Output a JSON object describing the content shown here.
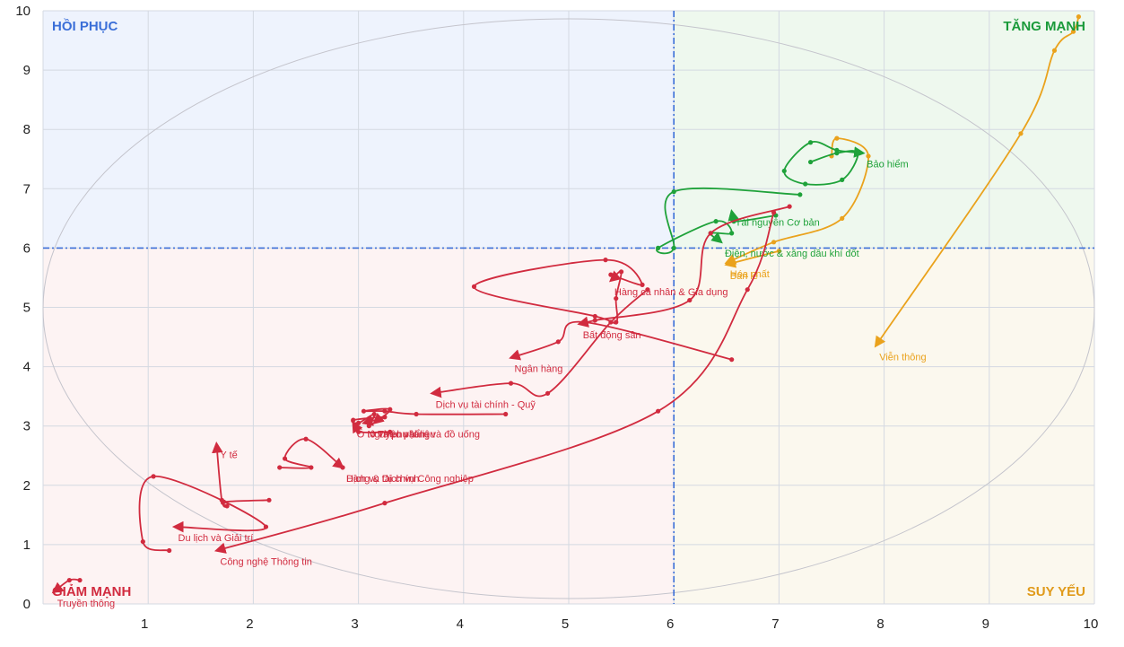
{
  "chart_data": {
    "type": "scatter",
    "xlim": [
      0,
      10
    ],
    "ylim": [
      0,
      10
    ],
    "x_ticks": [
      "1",
      "2",
      "3",
      "4",
      "5",
      "6",
      "7",
      "8",
      "9",
      "10"
    ],
    "y_ticks": [
      "0",
      "1",
      "2",
      "3",
      "4",
      "5",
      "6",
      "7",
      "8",
      "9",
      "10"
    ],
    "grid": true,
    "reference_lines": {
      "x": 6,
      "y": 6
    },
    "quadrants": [
      {
        "name": "HỒI PHỤC",
        "color": "#3b6fd8",
        "fill": "#eef3fd"
      },
      {
        "name": "TĂNG MẠNH",
        "color": "#1a9a3a",
        "fill": "#eef8ee"
      },
      {
        "name": "GIẢM MẠNH",
        "color": "#d12b3f",
        "fill": "#fdf3f3"
      },
      {
        "name": "SUY YẾU",
        "color": "#e09a1a",
        "fill": "#fbf8ee"
      }
    ],
    "colors": {
      "green": "#1fa23a",
      "orange": "#eaa21c",
      "red": "#d12b3f"
    },
    "series": [
      {
        "name": "Viễn thông",
        "color": "orange",
        "points": [
          [
            9.85,
            9.9
          ],
          [
            9.8,
            9.65
          ],
          [
            9.62,
            9.33
          ],
          [
            9.3,
            7.93
          ],
          [
            7.92,
            4.35
          ]
        ]
      },
      {
        "name": "Hóa chất",
        "color": "orange",
        "points": [
          [
            7.5,
            7.55
          ],
          [
            7.55,
            7.85
          ],
          [
            7.85,
            7.55
          ],
          [
            7.6,
            6.5
          ],
          [
            6.95,
            6.1
          ],
          [
            6.5,
            5.75
          ]
        ]
      },
      {
        "name": "Bán lẻ",
        "color": "orange",
        "points": [
          [
            7.0,
            5.95
          ],
          [
            6.5,
            5.72
          ]
        ]
      },
      {
        "name": "Bảo hiểm",
        "color": "green",
        "points": [
          [
            7.3,
            7.45
          ],
          [
            7.55,
            7.6
          ],
          [
            7.75,
            7.6
          ],
          [
            7.6,
            7.15
          ],
          [
            7.25,
            7.08
          ],
          [
            7.05,
            7.3
          ],
          [
            7.3,
            7.78
          ],
          [
            7.55,
            7.65
          ],
          [
            7.8,
            7.6
          ]
        ]
      },
      {
        "name": "Tài nguyên Cơ bản",
        "color": "green",
        "points": [
          [
            6.97,
            6.55
          ],
          [
            6.57,
            6.45
          ],
          [
            6.55,
            6.62
          ]
        ]
      },
      {
        "name": "Điện, nước & xăng dầu khí đốt",
        "color": "green",
        "points": [
          [
            7.2,
            6.9
          ],
          [
            6.0,
            6.95
          ],
          [
            6.0,
            6.0
          ],
          [
            5.85,
            6.0
          ],
          [
            6.4,
            6.45
          ],
          [
            6.55,
            6.25
          ],
          [
            6.35,
            6.25
          ],
          [
            6.45,
            6.1
          ]
        ]
      },
      {
        "name": "Hàng cá nhân & Gia dụng",
        "color": "red",
        "points": [
          [
            5.4,
            5.55
          ],
          [
            5.7,
            5.38
          ],
          [
            5.35,
            5.8
          ],
          [
            4.1,
            5.35
          ],
          [
            5.25,
            4.85
          ],
          [
            5.45,
            4.75
          ],
          [
            5.45,
            5.15
          ],
          [
            5.5,
            5.6
          ],
          [
            5.4,
            5.45
          ]
        ]
      },
      {
        "name": "Bất động sản",
        "color": "red",
        "points": [
          [
            7.1,
            6.7
          ],
          [
            6.35,
            6.25
          ],
          [
            6.15,
            5.12
          ],
          [
            5.25,
            4.78
          ],
          [
            5.1,
            4.72
          ]
        ]
      },
      {
        "name": "Ngân hàng",
        "color": "red",
        "points": [
          [
            6.55,
            4.12
          ],
          [
            5.15,
            4.75
          ],
          [
            4.9,
            4.42
          ],
          [
            4.45,
            4.15
          ]
        ]
      },
      {
        "name": "Dịch vụ tài chính - Quỹ",
        "color": "red",
        "points": [
          [
            5.75,
            5.3
          ],
          [
            5.4,
            4.75
          ],
          [
            4.8,
            3.55
          ],
          [
            4.45,
            3.72
          ],
          [
            3.7,
            3.55
          ]
        ]
      },
      {
        "name": "Thực phẩm và đồ uống",
        "color": "red",
        "points": [
          [
            4.4,
            3.2
          ],
          [
            3.55,
            3.2
          ],
          [
            3.25,
            3.25
          ],
          [
            3.05,
            3.25
          ],
          [
            3.3,
            3.28
          ],
          [
            3.15,
            3.05
          ]
        ]
      },
      {
        "name": "Nguyên vật liệu",
        "color": "red",
        "points": [
          [
            3.1,
            3.0
          ],
          [
            3.15,
            3.2
          ],
          [
            3.0,
            3.05
          ],
          [
            2.95,
            3.1
          ],
          [
            3.25,
            3.15
          ],
          [
            3.05,
            3.05
          ]
        ]
      },
      {
        "name": "Ô tô và phụ tùng",
        "color": "red",
        "points": [
          [
            3.3,
            2.9
          ],
          [
            3.0,
            2.9
          ],
          [
            2.95,
            3.05
          ]
        ]
      },
      {
        "name": "Hàng & Dịch vụ Công nghiệp",
        "color": "red",
        "points": [
          [
            2.25,
            2.3
          ],
          [
            2.55,
            2.3
          ],
          [
            2.3,
            2.45
          ],
          [
            2.5,
            2.78
          ],
          [
            2.85,
            2.3
          ]
        ]
      },
      {
        "name": "Dịch vụ tài chính",
        "color": "red",
        "points": [
          [
            2.85,
            2.3
          ]
        ]
      },
      {
        "name": "Y tế",
        "color": "red",
        "points": [
          [
            2.15,
            1.75
          ],
          [
            1.72,
            1.72
          ],
          [
            1.75,
            1.65
          ],
          [
            1.7,
            1.75
          ],
          [
            1.65,
            2.7
          ]
        ]
      },
      {
        "name": "Du lịch và Giải trí",
        "color": "red",
        "points": [
          [
            1.2,
            0.9
          ],
          [
            0.95,
            1.05
          ],
          [
            1.05,
            2.15
          ],
          [
            2.12,
            1.3
          ],
          [
            1.25,
            1.3
          ]
        ]
      },
      {
        "name": "Công nghệ Thông tin",
        "color": "red",
        "points": [
          [
            6.95,
            6.6
          ],
          [
            6.7,
            5.3
          ],
          [
            5.85,
            3.25
          ],
          [
            3.25,
            1.7
          ],
          [
            1.65,
            0.9
          ]
        ]
      },
      {
        "name": "Truyền thông",
        "color": "red",
        "points": [
          [
            0.35,
            0.4
          ],
          [
            0.25,
            0.4
          ],
          [
            0.1,
            0.2
          ]
        ]
      }
    ]
  }
}
